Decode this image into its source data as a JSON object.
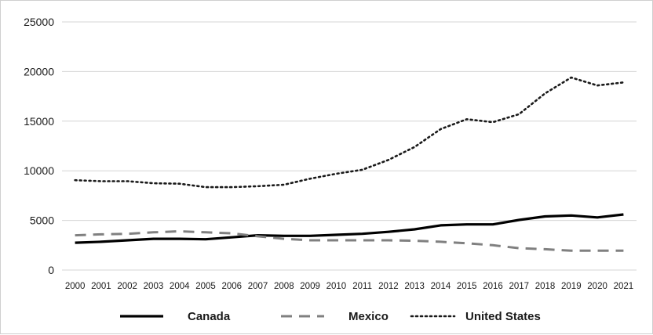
{
  "chart_data": {
    "type": "line",
    "title": "",
    "xlabel": "",
    "ylabel": "",
    "x": [
      "2000",
      "2001",
      "2002",
      "2003",
      "2004",
      "2005",
      "2006",
      "2007",
      "2008",
      "2009",
      "2010",
      "2011",
      "2012",
      "2013",
      "2014",
      "2015",
      "2016",
      "2017",
      "2018",
      "2019",
      "2020",
      "2021"
    ],
    "ylim": [
      0,
      25000
    ],
    "yticks": [
      "0",
      "5000",
      "10000",
      "15000",
      "20000",
      "25000"
    ],
    "grid": true,
    "legend_position": "bottom",
    "series": [
      {
        "name": "Canada",
        "style": "solid",
        "color": "#000000",
        "values": [
          2750,
          2850,
          3000,
          3150,
          3150,
          3100,
          3300,
          3500,
          3450,
          3450,
          3550,
          3650,
          3850,
          4100,
          4500,
          4600,
          4600,
          5050,
          5400,
          5500,
          5300,
          5600
        ]
      },
      {
        "name": "Mexico",
        "style": "dashed",
        "color": "#808080",
        "values": [
          3500,
          3600,
          3650,
          3800,
          3900,
          3800,
          3700,
          3400,
          3150,
          3000,
          3000,
          3000,
          3000,
          2950,
          2850,
          2700,
          2500,
          2200,
          2100,
          1950,
          1950,
          1950
        ]
      },
      {
        "name": "United States",
        "style": "dotted",
        "color": "#1a1a1a",
        "values": [
          9050,
          8950,
          8950,
          8750,
          8700,
          8350,
          8350,
          8450,
          8600,
          9200,
          9700,
          10100,
          11100,
          12400,
          14200,
          15200,
          14900,
          15700,
          17800,
          19400,
          18600,
          18900
        ]
      }
    ]
  }
}
